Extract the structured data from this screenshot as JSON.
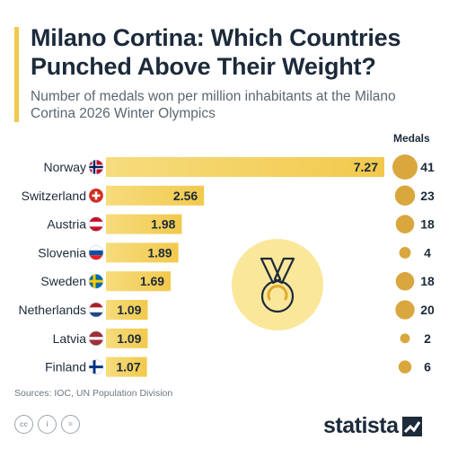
{
  "header": {
    "title": "Milano Cortina: Which Countries Punched Above Their Weight?",
    "subtitle": "Number of medals won per million inhabitants at the Milano Cortina 2026 Winter Olympics",
    "medals_label": "Medals"
  },
  "chart_data": {
    "type": "bar",
    "orientation": "horizontal",
    "categories": [
      "Norway",
      "Switzerland",
      "Austria",
      "Slovenia",
      "Sweden",
      "Netherlands",
      "Latvia",
      "Finland"
    ],
    "values": [
      7.27,
      2.56,
      1.98,
      1.89,
      1.69,
      1.09,
      1.09,
      1.07
    ],
    "value_labels": [
      "7.27",
      "2.56",
      "1.98",
      "1.89",
      "1.69",
      "1.09",
      "1.09",
      "1.07"
    ],
    "medals": [
      41,
      23,
      18,
      4,
      18,
      20,
      2,
      6
    ],
    "medal_labels": [
      "41",
      "23",
      "18",
      "4",
      "18",
      "20",
      "2",
      "6"
    ],
    "flags": [
      "norway-flag",
      "switzerland-flag",
      "austria-flag",
      "slovenia-flag",
      "sweden-flag",
      "netherlands-flag",
      "latvia-flag",
      "finland-flag"
    ],
    "bar_color": "#f2c94c",
    "bubble_color": "#d9a73e",
    "grid": false,
    "legend": "none"
  },
  "footer": {
    "source": "Sources: IOC, UN Population Division",
    "logo": "statista",
    "license_icons": [
      "cc-icon",
      "by-icon",
      "nd-icon"
    ]
  },
  "colors": {
    "accent": "#f2c94c",
    "text": "#1c2a3a",
    "muted": "#5b6672"
  }
}
